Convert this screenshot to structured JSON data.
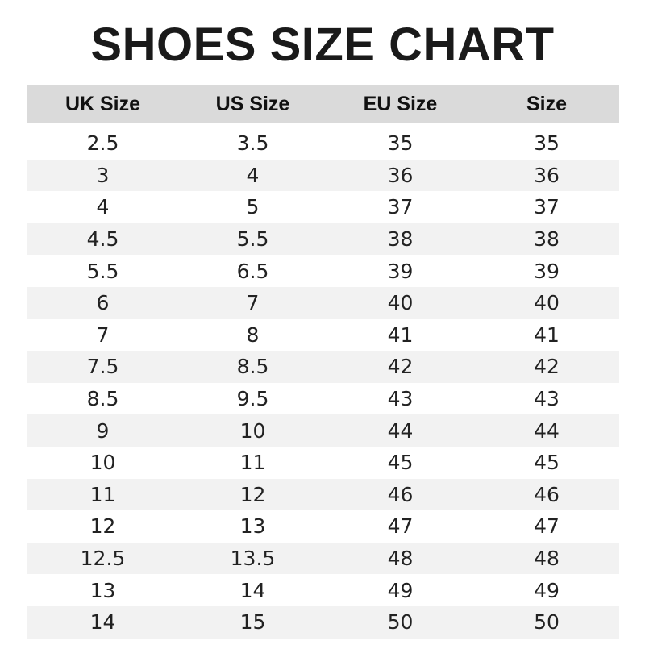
{
  "title": "SHOES SIZE CHART",
  "headers": [
    "UK Size",
    "US Size",
    "EU Size",
    "Size"
  ],
  "rows": [
    [
      "2.5",
      "3.5",
      "35",
      "35"
    ],
    [
      "3",
      "4",
      "36",
      "36"
    ],
    [
      "4",
      "5",
      "37",
      "37"
    ],
    [
      "4.5",
      "5.5",
      "38",
      "38"
    ],
    [
      "5.5",
      "6.5",
      "39",
      "39"
    ],
    [
      "6",
      "7",
      "40",
      "40"
    ],
    [
      "7",
      "8",
      "41",
      "41"
    ],
    [
      "7.5",
      "8.5",
      "42",
      "42"
    ],
    [
      "8.5",
      "9.5",
      "43",
      "43"
    ],
    [
      "9",
      "10",
      "44",
      "44"
    ],
    [
      "10",
      "11",
      "45",
      "45"
    ],
    [
      "11",
      "12",
      "46",
      "46"
    ],
    [
      "12",
      "13",
      "47",
      "47"
    ],
    [
      "12.5",
      "13.5",
      "48",
      "48"
    ],
    [
      "13",
      "14",
      "49",
      "49"
    ],
    [
      "14",
      "15",
      "50",
      "50"
    ]
  ],
  "colors": {
    "header_bg": "#dadada",
    "stripe_bg": "#f2f2f2"
  }
}
